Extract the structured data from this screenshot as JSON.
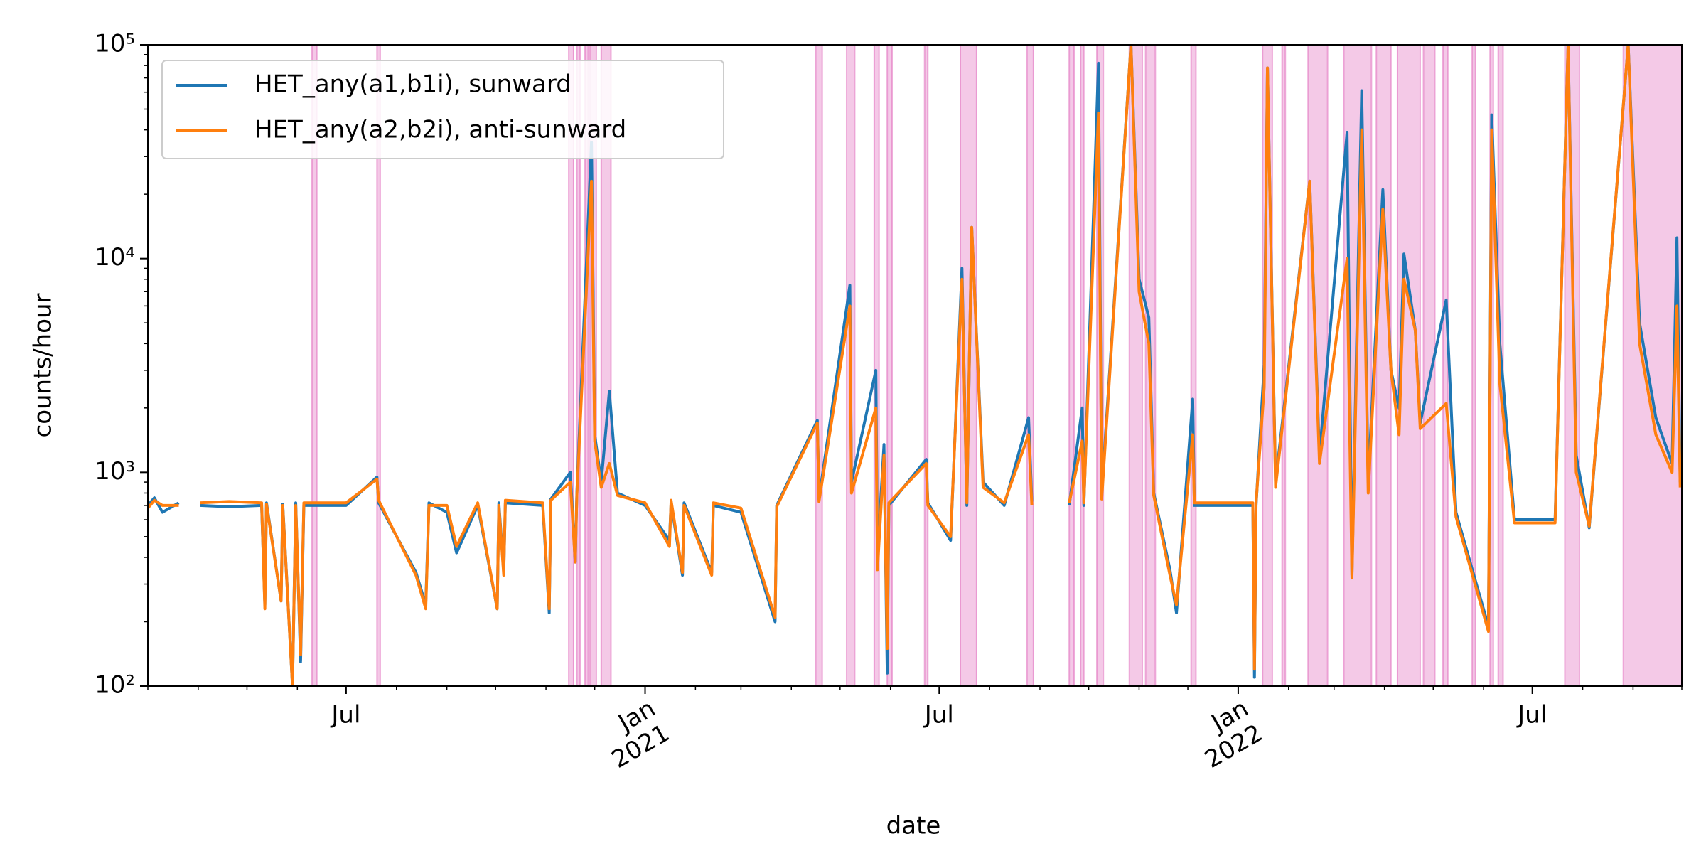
{
  "chart_data": {
    "type": "line",
    "xlabel": "date",
    "ylabel": "counts/hour",
    "log_y": true,
    "legend": "upper left",
    "span_color": "#e377c2",
    "xlim": [
      "2020-03-01",
      "2022-10-01"
    ],
    "xticks": [
      {
        "value": "2020-07-01",
        "label": "Jul"
      },
      {
        "value": "2021-01-01",
        "label": [
          "Jan",
          "2021"
        ]
      },
      {
        "value": "2021-07-01",
        "label": "Jul"
      },
      {
        "value": "2022-01-01",
        "label": [
          "Jan",
          "2022"
        ]
      },
      {
        "value": "2022-07-01",
        "label": "Jul"
      }
    ],
    "xminorticks": [
      "2020-03-01",
      "2020-04-01",
      "2020-05-01",
      "2020-06-01",
      "2020-08-01",
      "2020-09-01",
      "2020-10-01",
      "2020-11-01",
      "2020-12-01",
      "2021-02-01",
      "2021-03-01",
      "2021-04-01",
      "2021-05-01",
      "2021-06-01",
      "2021-08-01",
      "2021-09-01",
      "2021-10-01",
      "2021-11-01",
      "2021-12-01",
      "2022-02-01",
      "2022-03-01",
      "2022-04-01",
      "2022-05-01",
      "2022-06-01",
      "2022-08-01",
      "2022-09-01",
      "2022-10-01"
    ],
    "ylim": [
      100,
      100000
    ],
    "yticks": [
      {
        "value": 100,
        "label": "10²"
      },
      {
        "value": 1000,
        "label": "10³"
      },
      {
        "value": 10000,
        "label": "10⁴"
      },
      {
        "value": 100000,
        "label": "10⁵"
      }
    ],
    "yminorticks": [
      200,
      300,
      400,
      500,
      600,
      700,
      800,
      900,
      2000,
      3000,
      4000,
      5000,
      6000,
      7000,
      8000,
      9000,
      20000,
      30000,
      40000,
      50000,
      60000,
      70000,
      80000,
      90000
    ],
    "spans": [
      [
        "2020-06-10",
        "2020-06-13"
      ],
      [
        "2020-07-20",
        "2020-07-22"
      ],
      [
        "2020-11-15",
        "2020-11-18"
      ],
      [
        "2020-11-20",
        "2020-11-22"
      ],
      [
        "2020-11-25",
        "2020-11-27"
      ],
      [
        "2020-11-28",
        "2020-12-02"
      ],
      [
        "2020-12-05",
        "2020-12-11"
      ],
      [
        "2021-04-16",
        "2021-04-20"
      ],
      [
        "2021-05-05",
        "2021-05-10"
      ],
      [
        "2021-05-22",
        "2021-05-25"
      ],
      [
        "2021-05-30",
        "2021-06-02"
      ],
      [
        "2021-06-22",
        "2021-06-24"
      ],
      [
        "2021-07-14",
        "2021-07-24"
      ],
      [
        "2021-08-24",
        "2021-08-28"
      ],
      [
        "2021-09-19",
        "2021-09-22"
      ],
      [
        "2021-09-26",
        "2021-09-28"
      ],
      [
        "2021-10-06",
        "2021-10-10"
      ],
      [
        "2021-10-26",
        "2021-11-03"
      ],
      [
        "2021-11-05",
        "2021-11-11"
      ],
      [
        "2021-12-03",
        "2021-12-06"
      ],
      [
        "2022-01-16",
        "2022-01-22"
      ],
      [
        "2022-01-28",
        "2022-01-30"
      ],
      [
        "2022-02-13",
        "2022-02-25"
      ],
      [
        "2022-03-07",
        "2022-03-24"
      ],
      [
        "2022-03-27",
        "2022-04-05"
      ],
      [
        "2022-04-09",
        "2022-04-23"
      ],
      [
        "2022-04-25",
        "2022-05-02"
      ],
      [
        "2022-05-07",
        "2022-05-10"
      ],
      [
        "2022-05-25",
        "2022-05-27"
      ],
      [
        "2022-06-05",
        "2022-06-07"
      ],
      [
        "2022-06-10",
        "2022-06-13"
      ],
      [
        "2022-07-21",
        "2022-07-30"
      ],
      [
        "2022-08-26",
        "2022-10-01"
      ]
    ],
    "x": [
      "2020-03-01",
      "2020-03-05",
      "2020-03-10",
      "2020-03-20",
      "2020-03-25",
      "2020-04-02",
      "2020-04-20",
      "2020-05-10",
      "2020-05-12",
      "2020-05-13",
      "2020-05-22",
      "2020-05-23",
      "2020-05-29",
      "2020-05-31",
      "2020-06-03",
      "2020-06-05",
      "2020-07-01",
      "2020-07-20",
      "2020-07-21",
      "2020-08-13",
      "2020-08-19",
      "2020-08-21",
      "2020-09-01",
      "2020-09-07",
      "2020-09-20",
      "2020-10-02",
      "2020-10-03",
      "2020-10-06",
      "2020-10-07",
      "2020-10-30",
      "2020-11-03",
      "2020-11-04",
      "2020-11-16",
      "2020-11-19",
      "2020-11-20",
      "2020-11-29",
      "2020-12-01",
      "2020-12-05",
      "2020-12-10",
      "2020-12-15",
      "2021-01-01",
      "2021-01-16",
      "2021-01-17",
      "2021-01-24",
      "2021-01-25",
      "2021-02-11",
      "2021-02-12",
      "2021-03-01",
      "2021-03-22",
      "2021-03-23",
      "2021-04-17",
      "2021-04-18",
      "2021-05-07",
      "2021-05-08",
      "2021-05-23",
      "2021-05-24",
      "2021-05-28",
      "2021-05-30",
      "2021-05-31",
      "2021-06-23",
      "2021-06-24",
      "2021-07-08",
      "2021-07-15",
      "2021-07-18",
      "2021-07-21",
      "2021-07-28",
      "2021-08-10",
      "2021-08-25",
      "2021-08-27",
      "2021-09-15",
      "2021-09-19",
      "2021-09-27",
      "2021-09-28",
      "2021-10-07",
      "2021-10-09",
      "2021-10-27",
      "2021-11-01",
      "2021-11-07",
      "2021-11-10",
      "2021-11-20",
      "2021-11-24",
      "2021-12-04",
      "2021-12-05",
      "2022-01-10",
      "2022-01-11",
      "2022-01-12",
      "2022-01-17",
      "2022-01-19",
      "2022-01-24",
      "2022-02-14",
      "2022-02-20",
      "2022-03-09",
      "2022-03-12",
      "2022-03-18",
      "2022-03-22",
      "2022-03-31",
      "2022-04-05",
      "2022-04-10",
      "2022-04-13",
      "2022-04-20",
      "2022-04-23",
      "2022-05-09",
      "2022-05-15",
      "2022-06-04",
      "2022-06-06",
      "2022-06-11",
      "2022-06-20",
      "2022-07-15",
      "2022-07-23",
      "2022-07-28",
      "2022-08-05",
      "2022-08-29",
      "2022-09-05",
      "2022-09-15",
      "2022-09-25",
      "2022-09-28",
      "2022-09-30"
    ],
    "series": [
      {
        "name": "HET_any(a1,b1i), sunward",
        "color": "#1f77b4",
        "values": [
          700,
          760,
          650,
          720,
          null,
          700,
          690,
          700,
          240,
          720,
          250,
          710,
          100,
          720,
          130,
          700,
          700,
          950,
          720,
          340,
          240,
          720,
          650,
          420,
          700,
          230,
          720,
          340,
          720,
          700,
          220,
          750,
          1000,
          380,
          800,
          35000,
          1500,
          900,
          2400,
          800,
          700,
          480,
          720,
          330,
          720,
          340,
          700,
          650,
          200,
          700,
          1750,
          750,
          7500,
          900,
          3000,
          400,
          1350,
          115,
          700,
          1150,
          720,
          480,
          9000,
          700,
          14000,
          900,
          700,
          1800,
          730,
          null,
          700,
          2000,
          700,
          82000,
          800,
          100000,
          8000,
          5300,
          800,
          350,
          220,
          2200,
          700,
          700,
          110,
          700,
          3200,
          78000,
          900,
          23000,
          1200,
          39000,
          330,
          61000,
          900,
          21000,
          3000,
          2000,
          10500,
          4600,
          1700,
          6400,
          650,
          190,
          47000,
          4000,
          600,
          600,
          100000,
          1200,
          550,
          100000,
          5000,
          1800,
          1100,
          12500,
          900
        ]
      },
      {
        "name": "HET_any(a2,b2i), anti-sunward",
        "color": "#ff7f0e",
        "values": [
          680,
          740,
          700,
          700,
          null,
          720,
          730,
          720,
          230,
          710,
          250,
          700,
          100,
          700,
          140,
          720,
          720,
          930,
          740,
          330,
          230,
          700,
          700,
          450,
          720,
          230,
          700,
          330,
          740,
          720,
          230,
          740,
          900,
          380,
          780,
          23000,
          1400,
          850,
          1100,
          780,
          720,
          450,
          740,
          340,
          700,
          330,
          720,
          680,
          210,
          690,
          1700,
          730,
          6000,
          800,
          2000,
          350,
          1200,
          150,
          720,
          1100,
          700,
          500,
          8000,
          720,
          14000,
          850,
          720,
          1500,
          700,
          null,
          720,
          1400,
          720,
          48000,
          750,
          100000,
          7000,
          4000,
          780,
          330,
          240,
          1500,
          720,
          720,
          120,
          720,
          2500,
          78000,
          850,
          23000,
          1100,
          10000,
          320,
          40000,
          800,
          17000,
          3000,
          1500,
          8000,
          4600,
          1600,
          2100,
          620,
          180,
          40000,
          2600,
          580,
          580,
          100000,
          1000,
          560,
          100000,
          4000,
          1500,
          1000,
          6000,
          850
        ]
      }
    ]
  }
}
